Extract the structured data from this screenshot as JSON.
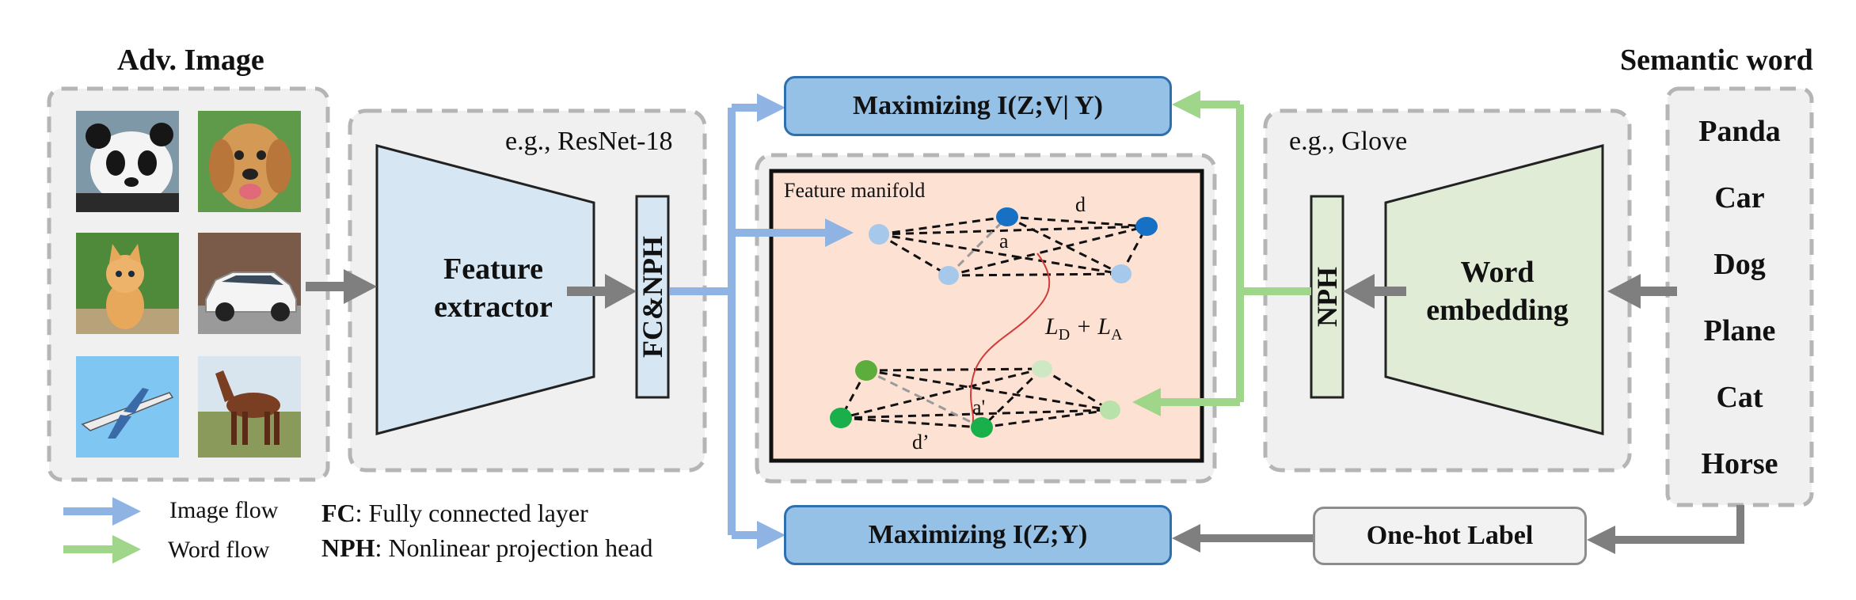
{
  "adv_image": {
    "title": "Adv. Image",
    "images": [
      {
        "name": "panda-image",
        "icon": "panda"
      },
      {
        "name": "dog-image",
        "icon": "golden-retriever"
      },
      {
        "name": "cat-image",
        "icon": "kitten"
      },
      {
        "name": "car-image",
        "icon": "white-car"
      },
      {
        "name": "plane-image",
        "icon": "airplane"
      },
      {
        "name": "horse-image",
        "icon": "horse"
      }
    ]
  },
  "image_encoder": {
    "example": "e.g., ResNet-18",
    "block_label": "Feature\nextractor",
    "head_label": "FC&NPH"
  },
  "word_encoder": {
    "example": "e.g., Glove",
    "block_label": "Word\nembedding",
    "head_label": "NPH"
  },
  "semantic_word": {
    "title": "Semantic word",
    "words": [
      "Panda",
      "Car",
      "Dog",
      "Plane",
      "Cat",
      "Horse"
    ]
  },
  "manifold": {
    "title": "Feature manifold",
    "labels": {
      "d": "d",
      "a": "a",
      "d_prime": "d’",
      "a_prime": "a'",
      "loss": "L",
      "loss_sub_d": "D",
      "loss_plus": " + L",
      "loss_sub_a": "A"
    }
  },
  "objectives": {
    "top": "Maximizing I(Z;V| Y)",
    "bottom": "Maximizing I(Z;Y)"
  },
  "one_hot": "One-hot Label",
  "legend": {
    "image_flow": "Image flow",
    "word_flow": "Word   flow",
    "fc_key": "FC",
    "fc_desc": ": Fully connected layer",
    "nph_key": "NPH",
    "nph_desc": ": Nonlinear projection head"
  },
  "colors": {
    "image_flow": "#8fb4e3",
    "word_flow": "#9fd68a",
    "gray_arrow": "#7f7f7f",
    "blue_box": "#95c1e6",
    "manifold_bg": "#fde1d3",
    "extractor_fill": "#d6e7f3",
    "embedding_fill": "#e1ecd6"
  }
}
